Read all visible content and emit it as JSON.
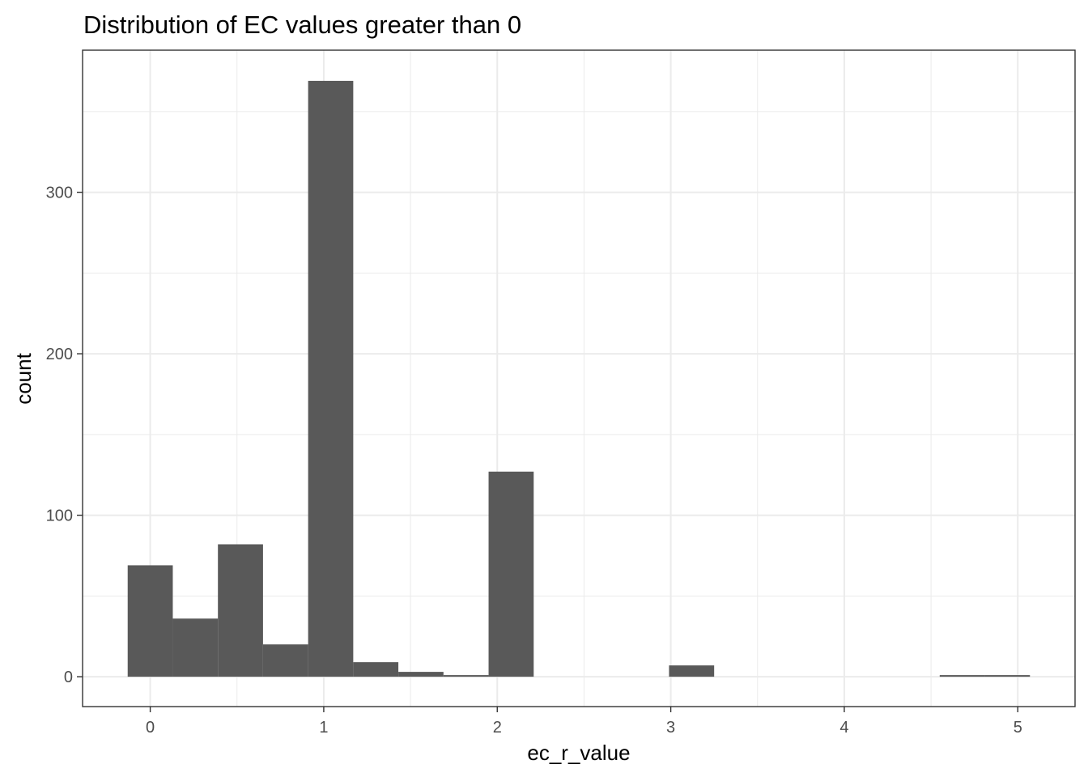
{
  "chart_data": {
    "type": "bar",
    "title": "Distribution of EC values greater than 0",
    "xlabel": "ec_r_value",
    "ylabel": "count",
    "xlim": [
      -0.39,
      5.33
    ],
    "ylim": [
      -18.5,
      388
    ],
    "x_ticks": [
      0,
      1,
      2,
      3,
      4,
      5
    ],
    "y_ticks": [
      0,
      100,
      200,
      300
    ],
    "grid": true,
    "bin_width": 0.26,
    "bins": [
      {
        "x0": -0.13,
        "x1": 0.13,
        "count": 69
      },
      {
        "x0": 0.13,
        "x1": 0.39,
        "count": 36
      },
      {
        "x0": 0.39,
        "x1": 0.65,
        "count": 82
      },
      {
        "x0": 0.65,
        "x1": 0.91,
        "count": 20
      },
      {
        "x0": 0.91,
        "x1": 1.17,
        "count": 369
      },
      {
        "x0": 1.17,
        "x1": 1.43,
        "count": 9
      },
      {
        "x0": 1.43,
        "x1": 1.69,
        "count": 3
      },
      {
        "x0": 1.69,
        "x1": 1.95,
        "count": 1
      },
      {
        "x0": 1.95,
        "x1": 2.21,
        "count": 127
      },
      {
        "x0": 2.99,
        "x1": 3.25,
        "count": 7
      },
      {
        "x0": 4.55,
        "x1": 4.81,
        "count": 1
      },
      {
        "x0": 4.81,
        "x1": 5.07,
        "count": 1
      }
    ],
    "colors": {
      "bar": "#595959",
      "grid": "#ebebeb",
      "panel_border": "#333333",
      "tick_text": "#4d4d4d"
    }
  }
}
